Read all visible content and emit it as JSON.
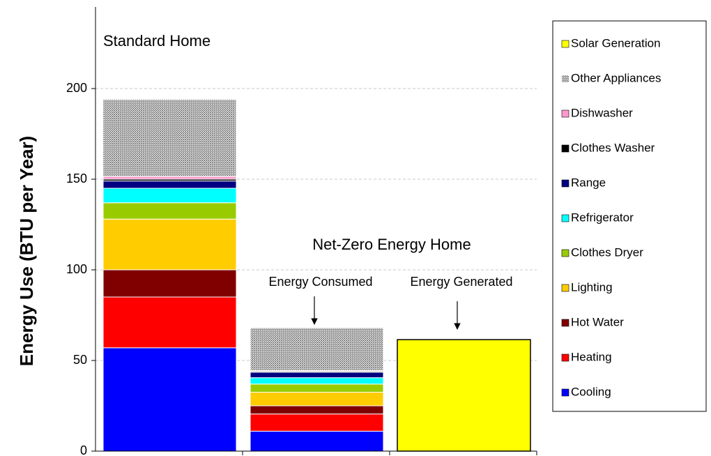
{
  "chart_data": {
    "type": "bar",
    "stacked": true,
    "y_label": "Energy Use (BTU per Year)",
    "annotations": [
      "Standard Home",
      "Net-Zero Energy Home",
      "Energy Consumed",
      "Energy Generated"
    ],
    "categories": [
      null,
      null,
      null
    ],
    "series": [
      {
        "name": "Cooling",
        "color": "#0000ff",
        "values": [
          57,
          11,
          null
        ]
      },
      {
        "name": "Heating",
        "color": "#ff0000",
        "values": [
          28,
          9.5,
          null
        ]
      },
      {
        "name": "Hot Water",
        "color": "#800000",
        "values": [
          15,
          4.5,
          null
        ]
      },
      {
        "name": "Lighting",
        "color": "#ffcc00",
        "values": [
          28,
          7.5,
          null
        ]
      },
      {
        "name": "Clothes Dryer",
        "color": "#99cc00",
        "values": [
          9,
          4.5,
          null
        ]
      },
      {
        "name": "Refrigerator",
        "color": "#00ffff",
        "values": [
          8,
          3.5,
          null
        ]
      },
      {
        "name": "Range",
        "color": "#000080",
        "values": [
          4,
          3,
          null
        ]
      },
      {
        "name": "Clothes Washer",
        "color": "#000000",
        "values": [
          1,
          0.5,
          null
        ]
      },
      {
        "name": "Dishwasher",
        "color": "#ff99cc",
        "values": [
          1.5,
          0.5,
          null
        ]
      },
      {
        "name": "Other Appliances",
        "color": "#a6a6a6",
        "pattern": "dots",
        "values": [
          42.5,
          23.5,
          null
        ]
      },
      {
        "name": "Solar Generation",
        "color": "#ffff00",
        "values": [
          null,
          null,
          61.5
        ]
      }
    ],
    "ylim": [
      0,
      245
    ],
    "yticks": [
      0,
      50,
      100,
      150,
      200
    ],
    "grid": true,
    "legend": "right"
  }
}
